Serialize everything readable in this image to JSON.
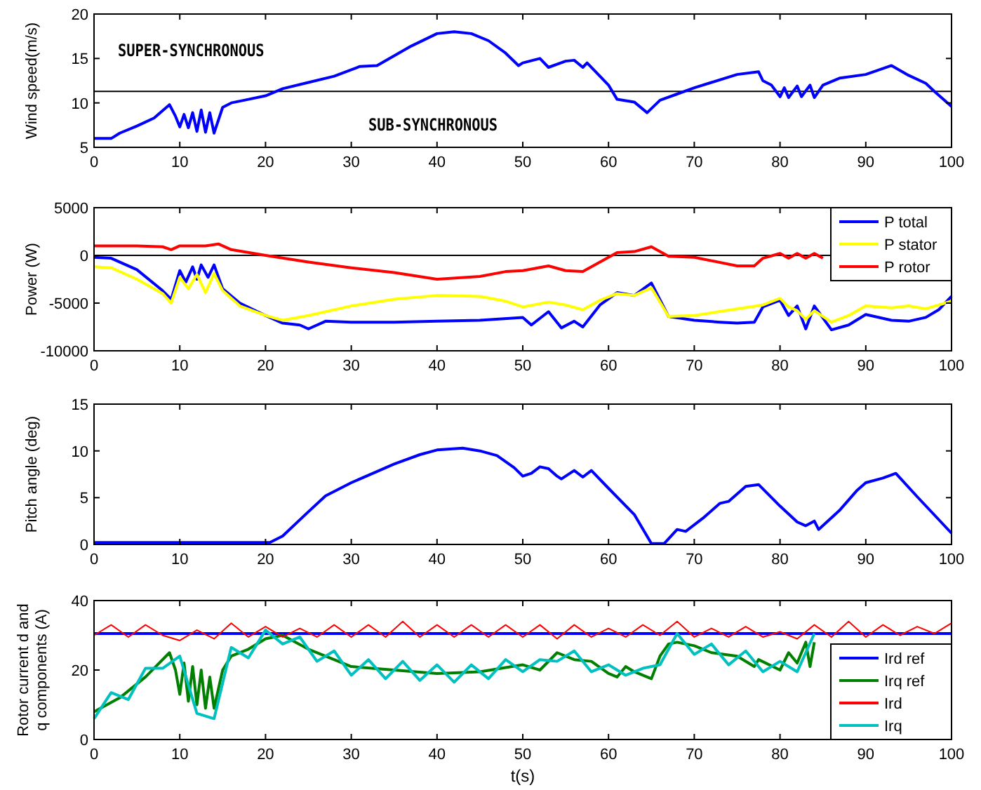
{
  "chart_data": [
    {
      "type": "line",
      "ylabel": "Wind speed(m/s)",
      "xlim": [
        0,
        100
      ],
      "xticks": [
        0,
        10,
        20,
        30,
        40,
        50,
        60,
        70,
        80,
        90,
        100
      ],
      "ylim": [
        5,
        20
      ],
      "yticks": [
        5,
        10,
        15,
        20
      ],
      "legend": false,
      "annotations": [
        "SUPER-SYNCHRONOUS",
        "SUB-SYNCHRONOUS"
      ],
      "ref_lines": [
        {
          "axis": "y",
          "value": 11.3,
          "color": "#000000"
        }
      ],
      "series": [
        {
          "color": "#0000ff",
          "x": [
            0,
            2,
            3,
            5,
            7,
            8.8,
            9.5,
            10,
            10.5,
            11,
            11.5,
            12,
            12.5,
            13,
            13.5,
            14,
            15,
            16,
            18,
            20,
            22,
            25,
            28,
            31,
            33,
            35,
            37,
            40,
            42,
            44,
            46,
            48,
            49.5,
            50,
            52,
            53,
            55,
            56,
            57,
            57.5,
            59,
            60,
            61,
            63,
            64.5,
            66,
            68,
            70,
            72,
            75,
            77.5,
            78,
            79,
            80,
            80.5,
            81,
            82,
            82.5,
            83.5,
            84,
            85,
            87,
            90,
            93,
            95,
            97,
            98,
            100
          ],
          "values": [
            6,
            6,
            6.6,
            7.4,
            8.3,
            9.8,
            8.5,
            7.3,
            8.7,
            7.2,
            8.9,
            6.8,
            9.2,
            6.7,
            8.9,
            6.6,
            9.5,
            10,
            10.4,
            10.8,
            11.6,
            12.3,
            13,
            14.1,
            14.2,
            15.3,
            16.4,
            17.8,
            18,
            17.8,
            17,
            15.6,
            14.2,
            14.5,
            15,
            14,
            14.7,
            14.8,
            14,
            14.5,
            13,
            12,
            10.4,
            10.1,
            8.9,
            10.3,
            11,
            11.7,
            12.3,
            13.2,
            13.5,
            12.5,
            12,
            10.7,
            11.7,
            10.6,
            11.9,
            10.7,
            12,
            10.6,
            12,
            12.8,
            13.2,
            14.2,
            13.1,
            12.2,
            11.3,
            9.6
          ]
        }
      ]
    },
    {
      "type": "line",
      "ylabel": "Power (W)",
      "xlim": [
        0,
        100
      ],
      "xticks": [
        0,
        10,
        20,
        30,
        40,
        50,
        60,
        70,
        80,
        90,
        100
      ],
      "ylim": [
        -10000,
        5000
      ],
      "yticks": [
        -10000,
        -5000,
        0,
        5000
      ],
      "legend": "top right",
      "ref_lines": [
        {
          "axis": "y",
          "value": 0,
          "color": "#000000"
        }
      ],
      "series": [
        {
          "name": "P total",
          "color": "#0000ff",
          "x": [
            0,
            2,
            5,
            8,
            9,
            10,
            10.7,
            11.5,
            12,
            12.5,
            13.3,
            14,
            15,
            17,
            20,
            22,
            24,
            25,
            27,
            30,
            35,
            40,
            45,
            50,
            51,
            53,
            54.5,
            56,
            57,
            59,
            61,
            63,
            65,
            67,
            70,
            73,
            75,
            77,
            78,
            80,
            81,
            82,
            83,
            84,
            86,
            88,
            90,
            93,
            95,
            97,
            98.5,
            100
          ],
          "values": [
            -200,
            -300,
            -1500,
            -3700,
            -4600,
            -1600,
            -2800,
            -1200,
            -2500,
            -1000,
            -2300,
            -1000,
            -3500,
            -5000,
            -6300,
            -7100,
            -7300,
            -7700,
            -6900,
            -7000,
            -7000,
            -6900,
            -6800,
            -6500,
            -7300,
            -5900,
            -7600,
            -6900,
            -7500,
            -5200,
            -3900,
            -4200,
            -2900,
            -6400,
            -6800,
            -7000,
            -7100,
            -7000,
            -5400,
            -4700,
            -6300,
            -5300,
            -7700,
            -5300,
            -7800,
            -7300,
            -6200,
            -6800,
            -6900,
            -6500,
            -5700,
            -4300
          ]
        },
        {
          "name": "P stator",
          "color": "#ffff00",
          "x": [
            0,
            2,
            5,
            8,
            9,
            10,
            11,
            12,
            13,
            14,
            15,
            17,
            20,
            22,
            25,
            30,
            35,
            40,
            45,
            48,
            50,
            53,
            55,
            57,
            59,
            61,
            63,
            65,
            67,
            70,
            75,
            78,
            80,
            81,
            82,
            83,
            84,
            86,
            88,
            90,
            93,
            95,
            97,
            100
          ],
          "values": [
            -1200,
            -1300,
            -2500,
            -4000,
            -5000,
            -2300,
            -3500,
            -2000,
            -3900,
            -1900,
            -3700,
            -5300,
            -6300,
            -6800,
            -6300,
            -5300,
            -4600,
            -4200,
            -4300,
            -4800,
            -5400,
            -4900,
            -5200,
            -5700,
            -4700,
            -4000,
            -4200,
            -3400,
            -6400,
            -6300,
            -5600,
            -5200,
            -4500,
            -5400,
            -5800,
            -6700,
            -5800,
            -7000,
            -6300,
            -5300,
            -5500,
            -5300,
            -5600,
            -4800
          ]
        },
        {
          "name": "P rotor",
          "color": "#ff0000",
          "x": [
            0,
            5,
            8,
            9,
            10,
            13,
            14.5,
            16,
            20,
            25,
            30,
            35,
            40,
            45,
            48,
            50,
            53,
            55,
            57,
            59,
            61,
            63,
            65,
            67,
            70,
            75,
            77,
            78,
            80,
            81,
            82,
            83,
            84,
            85
          ],
          "values": [
            1000,
            1000,
            900,
            600,
            1000,
            1000,
            1200,
            600,
            0,
            -700,
            -1300,
            -1800,
            -2500,
            -2200,
            -1700,
            -1600,
            -1100,
            -1600,
            -1700,
            -700,
            300,
            400,
            900,
            -100,
            -200,
            -1100,
            -1100,
            -300,
            200,
            -300,
            200,
            -300,
            200,
            -300
          ]
        }
      ]
    },
    {
      "type": "line",
      "ylabel": "Pitch angle (deg)",
      "xlim": [
        0,
        100
      ],
      "xticks": [
        0,
        10,
        20,
        30,
        40,
        50,
        60,
        70,
        80,
        90,
        100
      ],
      "ylim": [
        0,
        15
      ],
      "yticks": [
        0,
        5,
        10,
        15
      ],
      "legend": false,
      "series": [
        {
          "color": "#0000ff",
          "x": [
            0,
            20.5,
            22,
            25,
            27,
            30,
            32,
            35,
            38,
            40,
            43,
            45,
            47,
            49,
            50,
            51,
            52,
            53,
            54,
            54.5,
            56,
            57,
            58,
            60,
            63,
            65,
            66.5,
            68,
            69,
            71,
            73,
            74,
            76,
            77.5,
            80,
            82,
            83,
            84,
            84.5,
            87,
            89,
            90,
            92,
            93.5,
            96,
            100
          ],
          "values": [
            0.2,
            0.2,
            0.9,
            3.5,
            5.2,
            6.6,
            7.4,
            8.6,
            9.6,
            10.1,
            10.3,
            10,
            9.5,
            8.2,
            7.3,
            7.6,
            8.3,
            8.1,
            7.3,
            7,
            7.9,
            7.2,
            7.9,
            6,
            3.2,
            0.1,
            0.1,
            1.6,
            1.4,
            2.8,
            4.4,
            4.6,
            6.2,
            6.4,
            4.1,
            2.4,
            2,
            2.5,
            1.6,
            3.7,
            5.8,
            6.6,
            7.1,
            7.6,
            5.1,
            1.2
          ]
        }
      ]
    },
    {
      "type": "line",
      "ylabel": "Rotor current d and q components (A)",
      "xlabel": "t(s)",
      "xlim": [
        0,
        100
      ],
      "xticks": [
        0,
        10,
        20,
        30,
        40,
        50,
        60,
        70,
        80,
        90,
        100
      ],
      "ylim": [
        0,
        40
      ],
      "yticks": [
        0,
        20,
        40
      ],
      "legend": "bottom right",
      "series": [
        {
          "name": "Ird ref",
          "color": "#0000ff",
          "x": [
            0,
            100
          ],
          "values": [
            30.5,
            30.5
          ]
        },
        {
          "name": "Irq ref",
          "color": "#008000",
          "x": [
            0,
            3,
            6,
            8.8,
            9.5,
            10,
            10.5,
            11,
            11.5,
            12,
            12.5,
            13,
            13.5,
            14,
            15,
            16,
            18,
            20,
            22,
            25,
            28,
            30,
            35,
            40,
            45,
            50,
            52,
            54,
            56,
            58,
            60,
            61,
            62,
            63,
            64,
            65,
            66,
            67,
            68,
            70,
            72,
            75,
            77,
            77.5,
            80,
            81,
            82,
            83,
            83.5,
            84
          ],
          "values": [
            8,
            12,
            18,
            25,
            20,
            13,
            22,
            11,
            21,
            10,
            20,
            9,
            18,
            9,
            20,
            24,
            26,
            29,
            30,
            26,
            23,
            21,
            20,
            19,
            19.5,
            21.5,
            20,
            25,
            23,
            22.5,
            19,
            18,
            21,
            19.5,
            18.5,
            17.5,
            24,
            27.5,
            28,
            27,
            25,
            24,
            21,
            23,
            20,
            25,
            22,
            28,
            21,
            28
          ]
        },
        {
          "name": "Ird",
          "color": "#ff0000",
          "x": [
            0,
            2,
            4,
            6,
            8,
            10,
            12,
            14,
            16,
            18,
            20,
            22,
            24,
            26,
            28,
            30,
            32,
            34,
            36,
            38,
            40,
            42,
            44,
            46,
            48,
            50,
            52,
            54,
            56,
            58,
            60,
            62,
            64,
            66,
            68,
            70,
            72,
            74,
            76,
            78,
            80,
            82,
            84,
            86,
            88,
            90,
            92,
            94,
            96,
            98,
            100
          ],
          "values": [
            30,
            33,
            29.5,
            33,
            30,
            28.5,
            31.5,
            29,
            33.5,
            29.5,
            32.5,
            29.5,
            32,
            29.5,
            33,
            29.5,
            33,
            29.5,
            34,
            29.5,
            33,
            29.5,
            33,
            29.5,
            33,
            29.5,
            33,
            29,
            33,
            29.5,
            32,
            29.5,
            33,
            30,
            34,
            29.5,
            32,
            29.5,
            32.5,
            29.5,
            31,
            29,
            33,
            29.5,
            34,
            29.5,
            33,
            30,
            32.5,
            30.5,
            33.5
          ]
        },
        {
          "name": "Irq",
          "color": "#00c0c0",
          "x": [
            0,
            2,
            4,
            6,
            8,
            10,
            12,
            14,
            16,
            18,
            20,
            22,
            24,
            26,
            28,
            30,
            32,
            34,
            36,
            38,
            40,
            42,
            44,
            46,
            48,
            50,
            52,
            54,
            56,
            58,
            60,
            62,
            64,
            66,
            68,
            70,
            72,
            74,
            76,
            78,
            80,
            82,
            84
          ],
          "values": [
            6,
            13.5,
            11.5,
            20.5,
            20.5,
            24,
            7.5,
            6,
            26.5,
            23.5,
            31.5,
            27.5,
            29.5,
            22.5,
            25.5,
            18.5,
            23,
            17.5,
            22.5,
            17,
            21.5,
            16.5,
            21.5,
            17.5,
            23,
            19.5,
            23,
            22.5,
            25.5,
            19.5,
            21.5,
            18.5,
            20.5,
            21.5,
            30.5,
            24.5,
            27.5,
            21.5,
            25.5,
            19.5,
            22.5,
            19.5,
            30.5
          ]
        }
      ]
    }
  ]
}
